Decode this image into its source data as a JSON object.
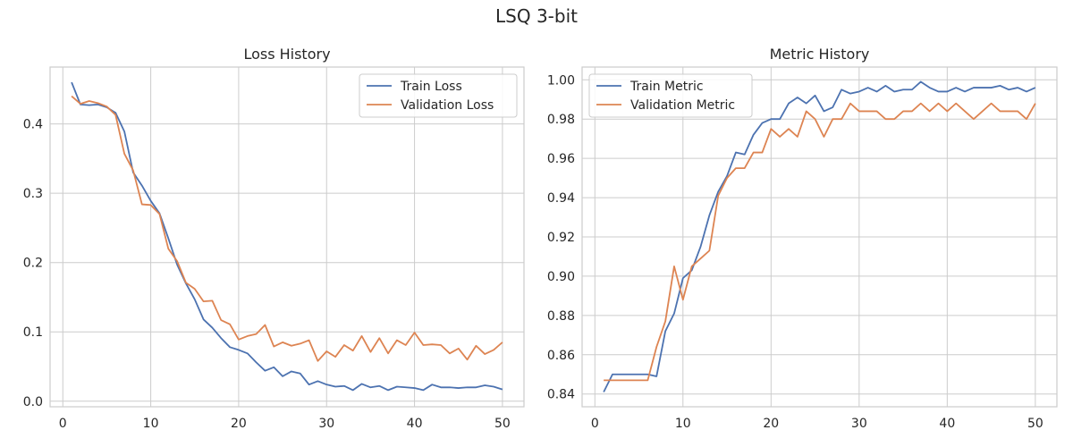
{
  "suptitle": "LSQ 3-bit",
  "chart_data": [
    {
      "type": "line",
      "title": "Loss History",
      "xlabel": "",
      "ylabel": "",
      "xlim": [
        -1.45,
        52.45
      ],
      "ylim": [
        -0.008,
        0.482
      ],
      "xticks": [
        0,
        10,
        20,
        30,
        40,
        50
      ],
      "yticks": [
        0.0,
        0.1,
        0.2,
        0.3,
        0.4
      ],
      "ytick_labels": [
        "0.0",
        "0.1",
        "0.2",
        "0.3",
        "0.4"
      ],
      "grid": true,
      "legend_position": "upper right",
      "x": [
        1,
        2,
        3,
        4,
        5,
        6,
        7,
        8,
        9,
        10,
        11,
        12,
        13,
        14,
        15,
        16,
        17,
        18,
        19,
        20,
        21,
        22,
        23,
        24,
        25,
        26,
        27,
        28,
        29,
        30,
        31,
        32,
        33,
        34,
        35,
        36,
        37,
        38,
        39,
        40,
        41,
        42,
        43,
        44,
        45,
        46,
        47,
        48,
        49,
        50
      ],
      "series": [
        {
          "name": "Train Loss",
          "color": "#4c72b0",
          "values": [
            0.46,
            0.428,
            0.427,
            0.428,
            0.424,
            0.416,
            0.389,
            0.33,
            0.311,
            0.289,
            0.271,
            0.235,
            0.197,
            0.17,
            0.147,
            0.118,
            0.106,
            0.091,
            0.078,
            0.074,
            0.069,
            0.056,
            0.044,
            0.049,
            0.036,
            0.043,
            0.04,
            0.024,
            0.029,
            0.024,
            0.021,
            0.022,
            0.016,
            0.025,
            0.02,
            0.022,
            0.016,
            0.021,
            0.02,
            0.019,
            0.016,
            0.024,
            0.02,
            0.02,
            0.019,
            0.02,
            0.02,
            0.023,
            0.021,
            0.017
          ]
        },
        {
          "name": "Validation Loss",
          "color": "#dd8452",
          "values": [
            0.44,
            0.429,
            0.433,
            0.43,
            0.425,
            0.413,
            0.357,
            0.333,
            0.284,
            0.283,
            0.27,
            0.22,
            0.202,
            0.171,
            0.162,
            0.144,
            0.145,
            0.117,
            0.111,
            0.089,
            0.094,
            0.097,
            0.11,
            0.079,
            0.085,
            0.08,
            0.083,
            0.088,
            0.058,
            0.072,
            0.064,
            0.081,
            0.073,
            0.094,
            0.071,
            0.091,
            0.069,
            0.088,
            0.081,
            0.099,
            0.081,
            0.082,
            0.081,
            0.069,
            0.076,
            0.06,
            0.08,
            0.068,
            0.074,
            0.085
          ]
        }
      ]
    },
    {
      "type": "line",
      "title": "Metric History",
      "xlabel": "",
      "ylabel": "",
      "xlim": [
        -1.45,
        52.45
      ],
      "ylim": [
        0.8335,
        1.0065
      ],
      "xticks": [
        0,
        10,
        20,
        30,
        40,
        50
      ],
      "yticks": [
        0.84,
        0.86,
        0.88,
        0.9,
        0.92,
        0.94,
        0.96,
        0.98,
        1.0
      ],
      "ytick_labels": [
        "0.84",
        "0.86",
        "0.88",
        "0.90",
        "0.92",
        "0.94",
        "0.96",
        "0.98",
        "1.00"
      ],
      "grid": true,
      "legend_position": "upper left",
      "x": [
        1,
        2,
        3,
        4,
        5,
        6,
        7,
        8,
        9,
        10,
        11,
        12,
        13,
        14,
        15,
        16,
        17,
        18,
        19,
        20,
        21,
        22,
        23,
        24,
        25,
        26,
        27,
        28,
        29,
        30,
        31,
        32,
        33,
        34,
        35,
        36,
        37,
        38,
        39,
        40,
        41,
        42,
        43,
        44,
        45,
        46,
        47,
        48,
        49,
        50
      ],
      "series": [
        {
          "name": "Train Metric",
          "color": "#4c72b0",
          "values": [
            0.841,
            0.85,
            0.85,
            0.85,
            0.85,
            0.85,
            0.849,
            0.872,
            0.881,
            0.899,
            0.903,
            0.915,
            0.931,
            0.943,
            0.951,
            0.963,
            0.962,
            0.972,
            0.978,
            0.98,
            0.98,
            0.988,
            0.991,
            0.988,
            0.992,
            0.984,
            0.986,
            0.995,
            0.993,
            0.994,
            0.996,
            0.994,
            0.997,
            0.994,
            0.995,
            0.995,
            0.999,
            0.996,
            0.994,
            0.994,
            0.996,
            0.994,
            0.996,
            0.996,
            0.996,
            0.997,
            0.995,
            0.996,
            0.994,
            0.996
          ]
        },
        {
          "name": "Validation Metric",
          "color": "#dd8452",
          "values": [
            0.847,
            0.847,
            0.847,
            0.847,
            0.847,
            0.847,
            0.864,
            0.877,
            0.905,
            0.888,
            0.905,
            0.909,
            0.913,
            0.941,
            0.95,
            0.955,
            0.955,
            0.963,
            0.963,
            0.975,
            0.971,
            0.975,
            0.971,
            0.984,
            0.98,
            0.971,
            0.98,
            0.98,
            0.988,
            0.984,
            0.984,
            0.984,
            0.98,
            0.98,
            0.984,
            0.984,
            0.988,
            0.984,
            0.988,
            0.984,
            0.988,
            0.984,
            0.98,
            0.984,
            0.988,
            0.984,
            0.984,
            0.984,
            0.98,
            0.988
          ]
        }
      ]
    }
  ]
}
